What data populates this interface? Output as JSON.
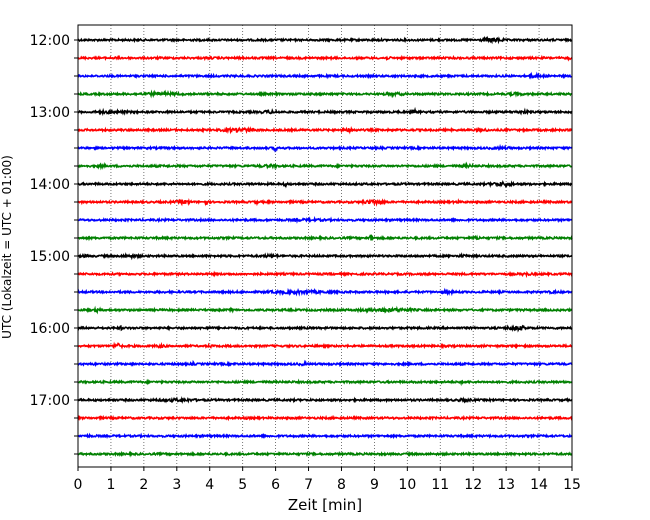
{
  "chart_data": {
    "type": "line",
    "title": "",
    "xlabel": "Zeit  [min]",
    "ylabel": "UTC (Lokalzeit = UTC + 01:00)",
    "xlim": [
      0,
      15
    ],
    "x_ticks": [
      "0",
      "1",
      "2",
      "3",
      "4",
      "5",
      "6",
      "7",
      "8",
      "9",
      "10",
      "11",
      "12",
      "13",
      "14",
      "15"
    ],
    "y_ticks": [
      "12:00",
      "13:00",
      "14:00",
      "15:00",
      "16:00",
      "17:00"
    ],
    "grid": "vertical dotted lines at each minute",
    "trace_colors": [
      "#000000",
      "#ff0000",
      "#0000ff",
      "#008000"
    ],
    "series": [
      {
        "start": "12:00",
        "color": "#000000",
        "bursts": [
          [
            12.6,
            0.7,
            2.4
          ]
        ]
      },
      {
        "start": "12:15",
        "color": "#ff0000",
        "bursts": [
          [
            1.2,
            0.4,
            1.3
          ],
          [
            4.0,
            0.8,
            1.2
          ],
          [
            9.4,
            0.4,
            1.4
          ],
          [
            14.9,
            0.2,
            1.6
          ]
        ]
      },
      {
        "start": "12:30",
        "color": "#0000ff",
        "bursts": [
          [
            13.9,
            0.6,
            1.8
          ]
        ]
      },
      {
        "start": "12:45",
        "color": "#008000",
        "bursts": [
          [
            2.5,
            2.0,
            1.7
          ],
          [
            9.6,
            1.0,
            1.6
          ],
          [
            13.3,
            0.6,
            1.7
          ]
        ]
      },
      {
        "start": "13:00",
        "color": "#000000",
        "bursts": [
          [
            1.0,
            1.5,
            1.6
          ],
          [
            5.8,
            0.8,
            1.7
          ],
          [
            10.2,
            0.1,
            3.3
          ],
          [
            13.5,
            0.8,
            1.6
          ]
        ]
      },
      {
        "start": "13:15",
        "color": "#ff0000",
        "bursts": [
          [
            4.9,
            1.2,
            2.2
          ],
          [
            8.2,
            0.6,
            2.0
          ],
          [
            12.3,
            0.5,
            1.6
          ]
        ]
      },
      {
        "start": "13:30",
        "color": "#0000ff",
        "bursts": [
          [
            6.0,
            0.1,
            3.3
          ],
          [
            12.8,
            1.0,
            1.6
          ]
        ]
      },
      {
        "start": "13:45",
        "color": "#008000",
        "bursts": [
          [
            0.7,
            0.3,
            1.9
          ],
          [
            5.8,
            1.0,
            1.6
          ],
          [
            11.8,
            0.5,
            1.7
          ]
        ]
      },
      {
        "start": "14:00",
        "color": "#000000",
        "bursts": [
          [
            6.3,
            0.3,
            1.8
          ],
          [
            12.9,
            0.9,
            2.2
          ]
        ]
      },
      {
        "start": "14:15",
        "color": "#ff0000",
        "bursts": [
          [
            3.2,
            0.5,
            2.2
          ],
          [
            3.9,
            0.1,
            3.0
          ],
          [
            5.4,
            0.1,
            2.6
          ],
          [
            9.0,
            0.8,
            2.4
          ],
          [
            11.5,
            0.3,
            1.6
          ]
        ]
      },
      {
        "start": "14:30",
        "color": "#0000ff",
        "bursts": [
          [
            7.0,
            2.0,
            1.4
          ]
        ]
      },
      {
        "start": "14:45",
        "color": "#008000",
        "bursts": [
          [
            8.9,
            0.15,
            3.8
          ],
          [
            12.1,
            0.4,
            1.8
          ]
        ]
      },
      {
        "start": "15:00",
        "color": "#000000",
        "bursts": [
          [
            0.2,
            0.2,
            1.9
          ],
          [
            1.6,
            0.8,
            1.7
          ],
          [
            5.8,
            1.0,
            1.5
          ],
          [
            11.7,
            0.6,
            1.5
          ]
        ]
      },
      {
        "start": "15:15",
        "color": "#ff0000",
        "bursts": [
          [
            13.6,
            0.5,
            1.7
          ]
        ]
      },
      {
        "start": "15:30",
        "color": "#0000ff",
        "bursts": [
          [
            6.7,
            2.5,
            1.8
          ],
          [
            11.2,
            0.6,
            1.7
          ],
          [
            14.4,
            0.3,
            1.6
          ]
        ]
      },
      {
        "start": "15:45",
        "color": "#008000",
        "bursts": [
          [
            0.6,
            0.2,
            2.2
          ],
          [
            4.7,
            0.1,
            2.4
          ],
          [
            9.4,
            2.0,
            2.0
          ]
        ]
      },
      {
        "start": "16:00",
        "color": "#000000",
        "bursts": [
          [
            1.3,
            0.1,
            2.4
          ],
          [
            3.9,
            0.1,
            2.0
          ],
          [
            13.3,
            0.7,
            2.6
          ]
        ]
      },
      {
        "start": "16:15",
        "color": "#ff0000",
        "bursts": [
          [
            1.2,
            0.3,
            3.0
          ],
          [
            2.5,
            0.6,
            1.6
          ],
          [
            4.0,
            0.2,
            1.7
          ]
        ]
      },
      {
        "start": "16:30",
        "color": "#0000ff",
        "bursts": [
          [
            3.5,
            0.1,
            2.2
          ],
          [
            4.8,
            0.1,
            1.8
          ],
          [
            6.8,
            0.6,
            1.5
          ]
        ]
      },
      {
        "start": "16:45",
        "color": "#008000",
        "bursts": [
          [
            11.6,
            0.2,
            1.8
          ]
        ]
      },
      {
        "start": "17:00",
        "color": "#000000",
        "bursts": [
          [
            3.0,
            2.0,
            1.6
          ],
          [
            11.7,
            0.7,
            1.7
          ]
        ]
      },
      {
        "start": "17:15",
        "color": "#ff0000",
        "bursts": [
          [
            5.1,
            0.1,
            1.5
          ]
        ]
      },
      {
        "start": "17:30",
        "color": "#0000ff",
        "bursts": [
          [
            0.3,
            0.3,
            1.5
          ],
          [
            3.8,
            0.2,
            1.4
          ]
        ]
      },
      {
        "start": "17:45",
        "color": "#008000",
        "bursts": []
      }
    ]
  }
}
